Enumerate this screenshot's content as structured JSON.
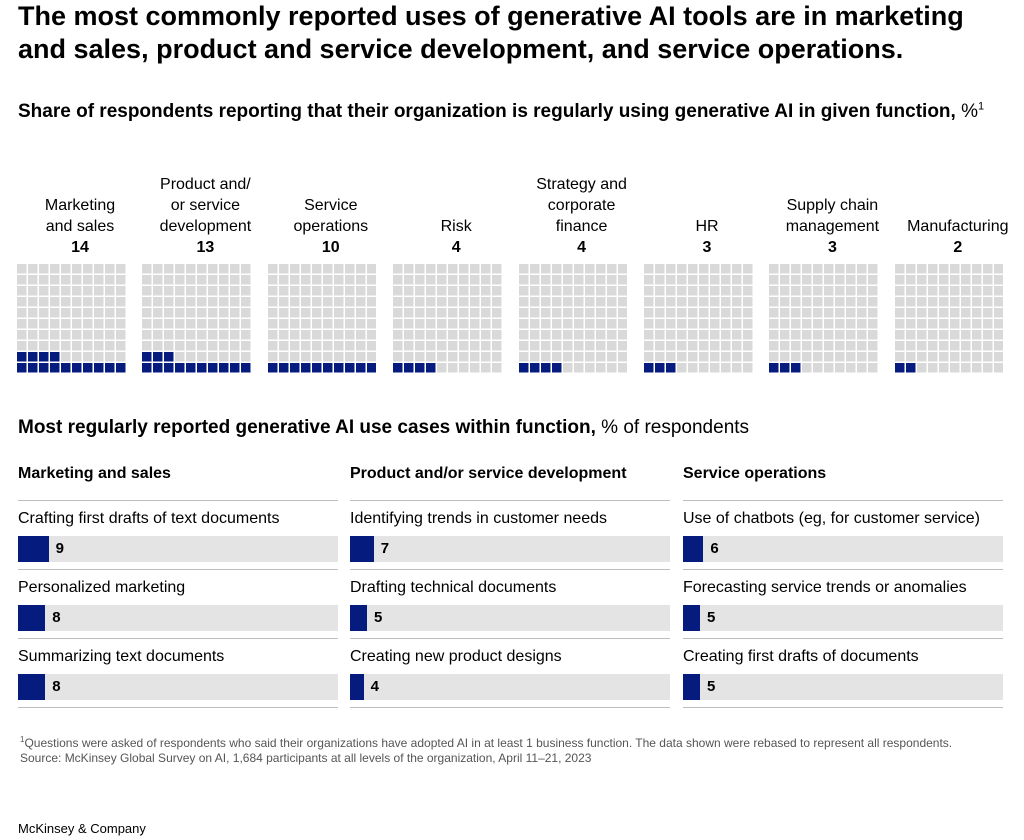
{
  "headline": "The most commonly reported uses of generative AI tools are in marketing and sales, product and service development, and service operations.",
  "subtitle": {
    "bold": "Share of respondents reporting that their organization is regularly using generative AI in given function,",
    "unit": " %",
    "note_marker": "1"
  },
  "colors": {
    "filled": "#051c7e",
    "empty": "#d9d9d9",
    "track": "#e4e4e4"
  },
  "chart_data": [
    {
      "type": "waffle",
      "title": "Share of respondents reporting that their organization is regularly using generative AI in given function, %",
      "total_cells": 100,
      "categories": [
        {
          "label_lines": [
            "Marketing",
            "and sales"
          ],
          "value": 14
        },
        {
          "label_lines": [
            "Product and/",
            "or service",
            "development"
          ],
          "value": 13
        },
        {
          "label_lines": [
            "Service",
            "operations"
          ],
          "value": 10
        },
        {
          "label_lines": [
            "Risk"
          ],
          "value": 4
        },
        {
          "label_lines": [
            "Strategy and",
            "corporate",
            "finance"
          ],
          "value": 4
        },
        {
          "label_lines": [
            "HR"
          ],
          "value": 3
        },
        {
          "label_lines": [
            "Supply chain",
            "management"
          ],
          "value": 3
        },
        {
          "label_lines": [
            "Manufacturing"
          ],
          "value": 2
        }
      ]
    },
    {
      "type": "bar",
      "title": "Most regularly reported generative AI use cases within function, % of respondents",
      "groups": [
        {
          "function": "Marketing and sales",
          "items": [
            {
              "label": "Crafting first drafts of text documents",
              "value": 9
            },
            {
              "label": "Personalized marketing",
              "value": 8
            },
            {
              "label": "Summarizing text documents",
              "value": 8
            }
          ]
        },
        {
          "function": "Product and/or service development",
          "items": [
            {
              "label": "Identifying trends in customer needs",
              "value": 7
            },
            {
              "label": "Drafting technical documents",
              "value": 5
            },
            {
              "label": "Creating new product designs",
              "value": 4
            }
          ]
        },
        {
          "function": "Service operations",
          "items": [
            {
              "label": "Use of chatbots (eg, for customer service)",
              "value": 6
            },
            {
              "label": "Forecasting service trends or anomalies",
              "value": 5
            },
            {
              "label": "Creating first drafts of documents",
              "value": 5
            }
          ]
        }
      ]
    }
  ],
  "use_cases_title": {
    "bold": "Most regularly reported generative AI use cases within function,",
    "light": " % of respondents"
  },
  "footnote": {
    "marker": "1",
    "text": "Questions were asked of respondents who said their organizations have adopted AI in at least 1 business function. The data shown were rebased to represent all respondents.",
    "source": "Source: McKinsey Global Survey on AI, 1,684 participants at all levels of the organization, April 11–21, 2023"
  },
  "brand": "McKinsey & Company"
}
